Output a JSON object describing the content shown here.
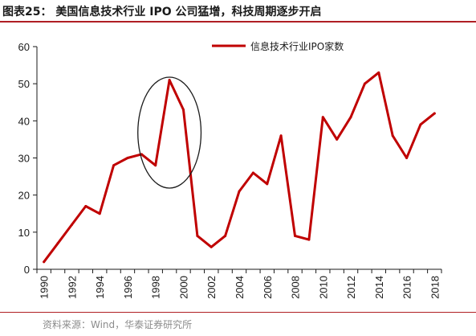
{
  "header": {
    "title": "图表25：  美国信息技术行业 IPO 公司猛增，科技周期逐步开启"
  },
  "footer": {
    "source": "资料来源：Wind，华泰证券研究所"
  },
  "colors": {
    "accent": "#b01f24",
    "line": "#c00000",
    "axis": "#1a1a1a",
    "source_text": "#8c8c8c"
  },
  "chart_data": {
    "type": "line",
    "x": [
      1990,
      1991,
      1992,
      1993,
      1994,
      1995,
      1996,
      1997,
      1998,
      1999,
      2000,
      2001,
      2002,
      2003,
      2004,
      2005,
      2006,
      2007,
      2008,
      2009,
      2010,
      2011,
      2012,
      2013,
      2014,
      2015,
      2016,
      2017,
      2018
    ],
    "x_tick_labels": [
      "1990",
      "1992",
      "1994",
      "1996",
      "1998",
      "2000",
      "2002",
      "2004",
      "2006",
      "2008",
      "2010",
      "2012",
      "2014",
      "2016",
      "2018"
    ],
    "series": [
      {
        "name": "信息技术行业IPO家数",
        "color": "#c00000",
        "values": [
          2,
          7,
          12,
          17,
          15,
          28,
          30,
          31,
          28,
          51,
          43,
          9,
          6,
          9,
          21,
          26,
          23,
          36,
          9,
          8,
          41,
          35,
          41,
          50,
          53,
          36,
          30,
          39,
          42
        ]
      }
    ],
    "ylim": [
      0,
      60
    ],
    "y_ticks": [
      0,
      10,
      20,
      30,
      40,
      50,
      60
    ],
    "title": "",
    "xlabel": "",
    "ylabel": "",
    "grid": false,
    "legend_position": "top-right",
    "annotation": {
      "type": "ellipse",
      "highlight_years": [
        1998,
        2000
      ]
    }
  }
}
